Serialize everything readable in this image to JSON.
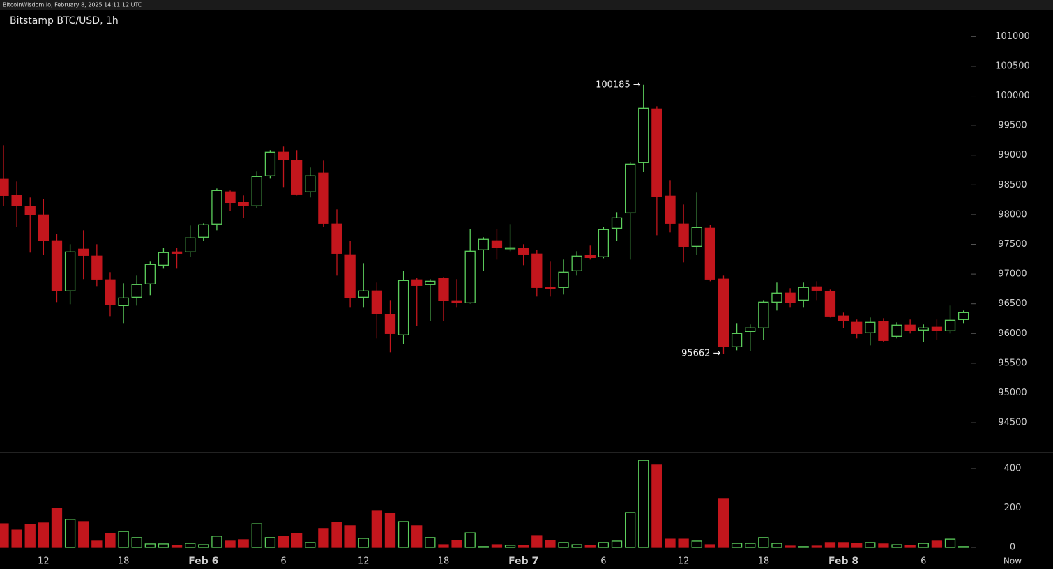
{
  "header": "BitcoinWisdom.io, February 8, 2025 14:11:12 UTC",
  "chart_data": {
    "type": "candlestick",
    "title": "Bitstamp BTC/USD, 1h",
    "categories": [
      null,
      null,
      null,
      "12",
      null,
      null,
      null,
      null,
      null,
      "18",
      null,
      null,
      null,
      null,
      null,
      "Feb 6",
      null,
      null,
      null,
      null,
      null,
      "6",
      null,
      null,
      null,
      null,
      null,
      "12",
      null,
      null,
      null,
      null,
      null,
      "18",
      null,
      null,
      null,
      null,
      null,
      "Feb 7",
      null,
      null,
      null,
      null,
      null,
      "6",
      null,
      null,
      null,
      null,
      null,
      "12",
      null,
      null,
      null,
      null,
      null,
      "18",
      null,
      null,
      null,
      null,
      null,
      "Feb 8",
      null,
      null,
      null,
      null,
      null,
      "6",
      null,
      null,
      null
    ],
    "x_end_label": "Now",
    "open": [
      98606,
      98324,
      98136,
      97995,
      97561,
      96716,
      97420,
      97303,
      96904,
      96469,
      96610,
      96833,
      97150,
      97373,
      97373,
      97620,
      97843,
      98383,
      98206,
      98148,
      98653,
      99052,
      98911,
      98383,
      98700,
      97843,
      97326,
      96610,
      96716,
      96317,
      95977,
      96904,
      96822,
      96927,
      96552,
      96516,
      97409,
      97561,
      97432,
      97432,
      97338,
      96775,
      96775,
      97056,
      97315,
      97291,
      97772,
      98030,
      98876,
      99779,
      98312,
      97843,
      97467,
      97772,
      96916,
      95777,
      96035,
      96094,
      96528,
      96681,
      96563,
      96786,
      96704,
      96294,
      96188,
      96012,
      96200,
      95953,
      96141,
      96059,
      96106,
      96047,
      96235
    ],
    "high": [
      99169,
      98559,
      98289,
      98265,
      97678,
      97502,
      97737,
      97502,
      97033,
      96845,
      96974,
      97209,
      97444,
      97444,
      97819,
      97854,
      98441,
      98406,
      98324,
      98735,
      99087,
      99146,
      99087,
      98794,
      98911,
      98089,
      97561,
      97185,
      96857,
      96563,
      97056,
      96939,
      96916,
      96951,
      96916,
      97761,
      97620,
      97761,
      97843,
      97502,
      97409,
      97209,
      97244,
      97385,
      97479,
      97796,
      98042,
      98887,
      100185,
      99826,
      98582,
      98171,
      98371,
      97831,
      96974,
      96176,
      96153,
      96563,
      96857,
      96763,
      96857,
      96880,
      96739,
      96352,
      96235,
      96270,
      96258,
      96188,
      96235,
      96153,
      96235,
      96470,
      96387
    ],
    "low": [
      98148,
      97796,
      97362,
      97327,
      96528,
      96493,
      96916,
      96798,
      96293,
      96176,
      96469,
      96646,
      97091,
      97091,
      97291,
      97561,
      97737,
      98066,
      97948,
      98113,
      98617,
      98465,
      98324,
      98289,
      97796,
      96974,
      96446,
      96446,
      95918,
      95683,
      95824,
      96129,
      96211,
      96211,
      96446,
      96504,
      97056,
      97244,
      97385,
      97150,
      96622,
      96622,
      96657,
      96974,
      97244,
      97267,
      97561,
      97244,
      98723,
      97655,
      97702,
      97197,
      97326,
      96880,
      95662,
      95718,
      95700,
      95894,
      96387,
      96446,
      96446,
      96563,
      96270,
      96094,
      95918,
      95800,
      95859,
      95918,
      96000,
      95859,
      95894,
      96000,
      96176
    ],
    "close": [
      98324,
      98148,
      97995,
      97561,
      96716,
      97373,
      97315,
      96916,
      96481,
      96598,
      96822,
      97162,
      97362,
      97350,
      97608,
      97831,
      98406,
      98206,
      98148,
      98641,
      99052,
      98923,
      98348,
      98653,
      97855,
      97350,
      96598,
      96716,
      96329,
      96000,
      96892,
      96810,
      96880,
      96563,
      96516,
      97385,
      97585,
      97444,
      97444,
      97338,
      96775,
      96751,
      97033,
      97303,
      97279,
      97749,
      97948,
      98852,
      99791,
      98312,
      97855,
      97467,
      97784,
      96916,
      95777,
      96000,
      96094,
      96528,
      96681,
      96516,
      96775,
      96728,
      96294,
      96211,
      96000,
      96188,
      95883,
      96141,
      96047,
      96094,
      96047,
      96223,
      96352
    ],
    "volume": [
      120,
      88,
      117,
      124,
      198,
      142,
      131,
      32,
      71,
      81,
      50,
      18,
      18,
      11,
      21,
      14,
      57,
      32,
      39,
      120,
      50,
      57,
      71,
      25,
      96,
      127,
      110,
      46,
      184,
      173,
      131,
      110,
      50,
      14,
      35,
      74,
      4,
      14,
      11,
      11,
      60,
      35,
      25,
      14,
      11,
      25,
      32,
      177,
      442,
      418,
      42,
      42,
      32,
      14,
      248,
      21,
      21,
      50,
      21,
      7,
      4,
      7,
      25,
      25,
      21,
      25,
      18,
      14,
      11,
      21,
      32,
      42,
      4
    ],
    "up_color": "#5ccf5c",
    "down_color": "#c3161d",
    "ylim": [
      94000,
      101450
    ],
    "yticks": [
      94500,
      95000,
      95500,
      96000,
      96500,
      97000,
      97500,
      98000,
      98500,
      99000,
      99500,
      100000,
      100500,
      101000
    ],
    "volume_ylim": [
      0,
      480
    ],
    "volume_yticks": [
      0,
      200,
      400
    ],
    "annotations": [
      {
        "value": 100185,
        "label": "100185 →"
      },
      {
        "value": 95662,
        "label": "95662 →"
      }
    ]
  }
}
